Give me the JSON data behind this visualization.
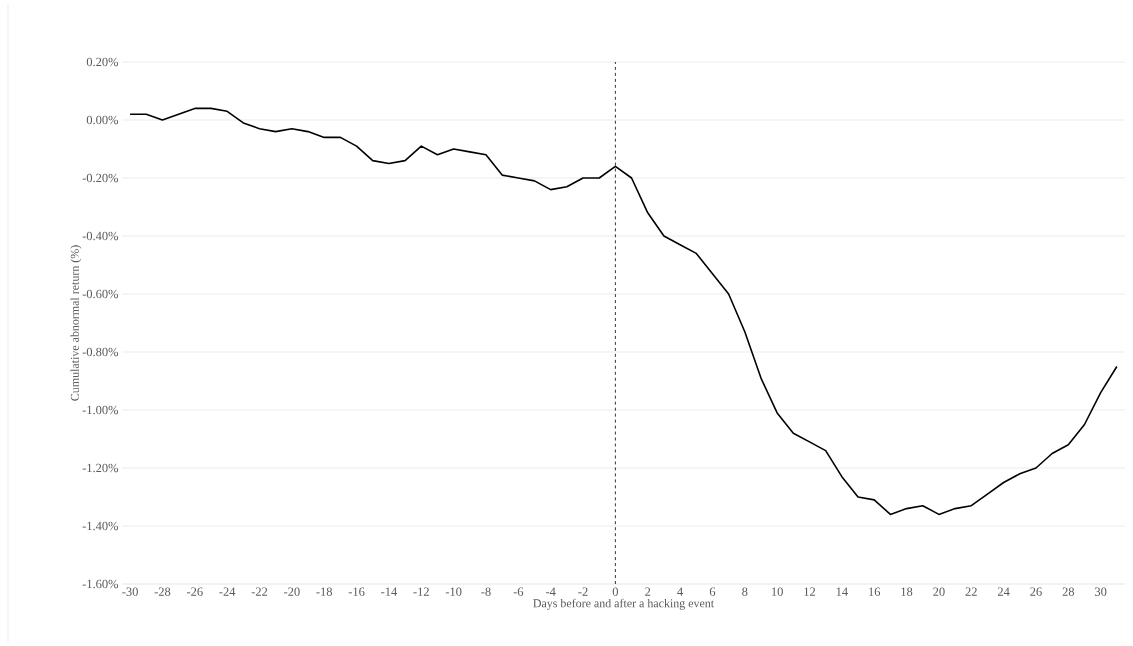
{
  "chart_data": {
    "type": "line",
    "xlabel": "Days before and after a hacking event",
    "ylabel": "Cumulative abnormal return (%)",
    "x": [
      -30,
      -29,
      -28,
      -27,
      -26,
      -25,
      -24,
      -23,
      -22,
      -21,
      -20,
      -19,
      -18,
      -17,
      -16,
      -15,
      -14,
      -13,
      -12,
      -11,
      -10,
      -9,
      -8,
      -7,
      -6,
      -5,
      -4,
      -3,
      -2,
      -1,
      0,
      1,
      2,
      3,
      4,
      5,
      6,
      7,
      8,
      9,
      10,
      11,
      12,
      13,
      14,
      15,
      16,
      17,
      18,
      19,
      20,
      21,
      22,
      23,
      24,
      25,
      26,
      27,
      28,
      29,
      30,
      31
    ],
    "series": [
      {
        "color": "#000000",
        "values": [
          0.02,
          0.02,
          0.0,
          0.02,
          0.04,
          0.04,
          0.03,
          -0.01,
          -0.03,
          -0.04,
          -0.03,
          -0.04,
          -0.06,
          -0.06,
          -0.09,
          -0.14,
          -0.15,
          -0.14,
          -0.09,
          -0.12,
          -0.1,
          -0.11,
          -0.12,
          -0.19,
          -0.2,
          -0.21,
          -0.24,
          -0.23,
          -0.2,
          -0.2,
          -0.16,
          -0.2,
          -0.32,
          -0.4,
          -0.43,
          -0.46,
          -0.53,
          -0.6,
          -0.73,
          -0.89,
          -1.01,
          -1.08,
          -1.11,
          -1.14,
          -1.23,
          -1.3,
          -1.31,
          -1.36,
          -1.34,
          -1.33,
          -1.36,
          -1.34,
          -1.33,
          -1.29,
          -1.25,
          -1.22,
          -1.2,
          -1.15,
          -1.12,
          -1.05,
          -0.94,
          -0.85
        ]
      }
    ],
    "xlim": [
      -30.5,
      31.5
    ],
    "xticks": [
      -30,
      -28,
      -26,
      -24,
      -22,
      -20,
      -18,
      -16,
      -14,
      -12,
      -10,
      -8,
      -6,
      -4,
      -2,
      0,
      2,
      4,
      6,
      8,
      10,
      12,
      14,
      16,
      18,
      20,
      22,
      24,
      26,
      28,
      30
    ],
    "ylim": [
      -1.6,
      0.2
    ],
    "yticks": [
      {
        "value": -1.6,
        "label": "-1.60%"
      },
      {
        "value": -1.4,
        "label": "-1.40%"
      },
      {
        "value": -1.2,
        "label": "-1.20%"
      },
      {
        "value": -1.0,
        "label": "-1.00%"
      },
      {
        "value": -0.8,
        "label": "-0.80%"
      },
      {
        "value": -0.6,
        "label": "-0.60%"
      },
      {
        "value": -0.4,
        "label": "-0.40%"
      },
      {
        "value": -0.2,
        "label": "-0.20%"
      },
      {
        "value": 0.0,
        "label": "0.00%"
      },
      {
        "value": 0.2,
        "label": "0.20%"
      }
    ],
    "grid": "y",
    "marker": "none",
    "line_style": "solid",
    "ref_lines": [
      {
        "axis": "x",
        "value": 0,
        "label": null,
        "color": "#000000",
        "line_style": "dashed"
      }
    ]
  }
}
